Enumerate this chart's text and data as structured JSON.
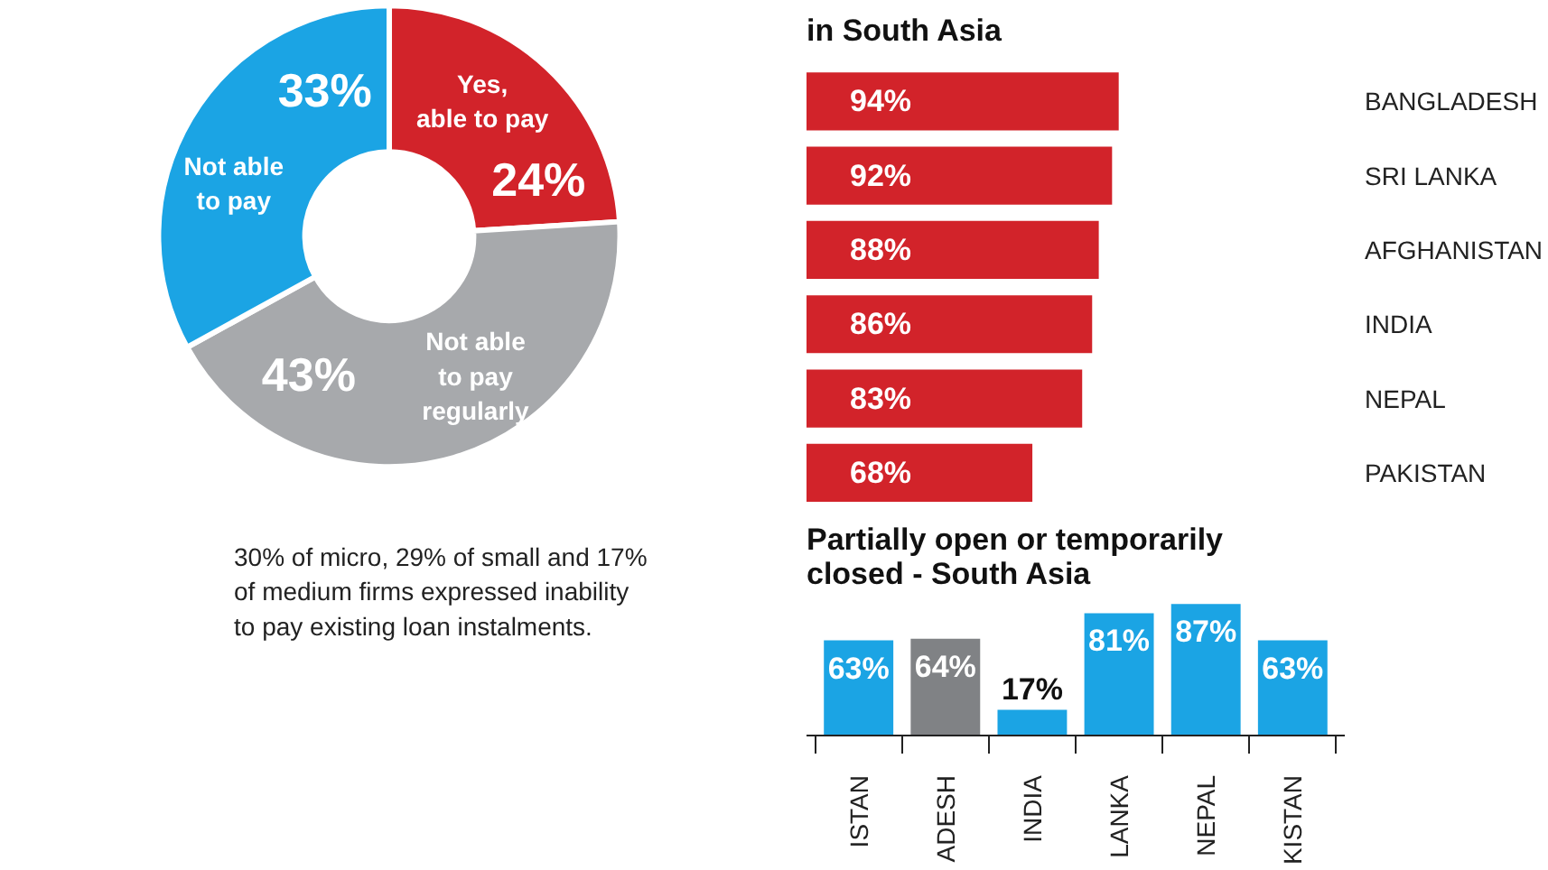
{
  "chart_data": [
    {
      "type": "donut",
      "categories": [
        "Yes,\nable to pay",
        "Not able\nto pay\nregularly",
        "Not able\nto pay"
      ],
      "values": [
        24,
        43,
        33
      ],
      "colors": [
        "#d2232a",
        "#a7a9ac",
        "#1ba4e4"
      ],
      "value_labels": [
        "24%",
        "43%",
        "33%"
      ],
      "annotations": [
        "30% of micro, 29% of small and 17% of medium firms expressed inability to pay existing loan instalments."
      ]
    },
    {
      "type": "bar",
      "orientation": "horizontal",
      "title": "in South Asia",
      "categories": [
        "BANGLADESH",
        "SRI LANKA",
        "AFGHANISTAN",
        "INDIA",
        "NEPAL",
        "PAKISTAN"
      ],
      "values": [
        94,
        92,
        88,
        86,
        83,
        68
      ],
      "color": "#d2232a",
      "value_labels": [
        "94%",
        "92%",
        "88%",
        "86%",
        "83%",
        "68%"
      ],
      "tick_labels": "y",
      "grid": false
    },
    {
      "type": "bar",
      "title": "Partially open or temporarily closed - South Asia",
      "categories": [
        "ISTAN",
        "ADESH",
        "INDIA",
        "LANKA",
        "NEPAL",
        "KISTAN"
      ],
      "values": [
        63,
        64,
        17,
        81,
        87,
        63
      ],
      "colors": [
        "#1ba4e4",
        "#808285",
        "#1ba4e4",
        "#1ba4e4",
        "#1ba4e4",
        "#1ba4e4"
      ],
      "value_labels": [
        "63%",
        "64%",
        "17%",
        "81%",
        "87%",
        "63%"
      ],
      "tick_labels": "x",
      "grid": false
    }
  ]
}
